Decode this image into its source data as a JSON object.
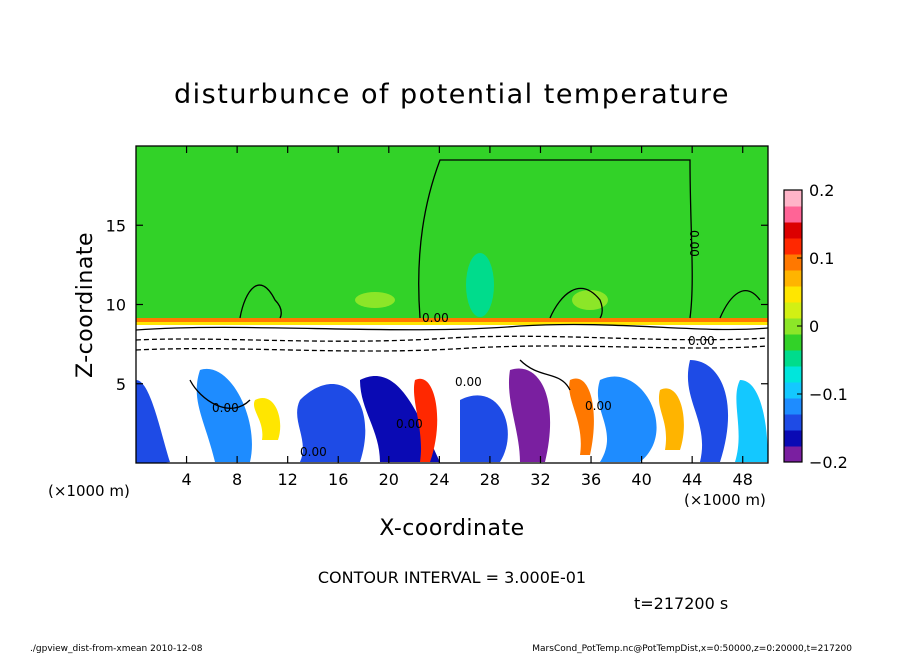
{
  "chart_data": {
    "type": "heatmap",
    "title": "disturbunce of potential temperature",
    "xlabel": "X-coordinate",
    "ylabel": "Z-coordinate",
    "x_unit_left": "(×1000 m)",
    "x_unit_right": "(×1000 m)",
    "xlim": [
      0,
      50
    ],
    "ylim": [
      0,
      20
    ],
    "x_ticks": [
      4,
      8,
      12,
      16,
      20,
      24,
      28,
      32,
      36,
      40,
      44,
      48
    ],
    "x_tick_labels": [
      "4",
      "8",
      "12",
      "16",
      "20",
      "24",
      "28",
      "32",
      "36",
      "40",
      "44",
      "48"
    ],
    "y_ticks": [
      5,
      10,
      15
    ],
    "y_tick_labels": [
      "5",
      "10",
      "15"
    ],
    "colorbar": {
      "range": [
        -0.2,
        0.2
      ],
      "ticks": [
        0.2,
        0.1,
        0,
        -0.1,
        -0.2
      ],
      "tick_labels": [
        "0.2",
        "0.1",
        "0",
        "−0.1",
        "−0.2"
      ],
      "colors": [
        "#7a1fa0",
        "#0a0ab4",
        "#1e4be6",
        "#1e8cff",
        "#14c8ff",
        "#00e6dc",
        "#00dc8c",
        "#32d228",
        "#8ce628",
        "#d2f014",
        "#ffe600",
        "#ffb400",
        "#ff7800",
        "#ff2800",
        "#dc0000",
        "#ff6496",
        "#ffb4c8"
      ]
    },
    "contour_interval_text": "CONTOUR INTERVAL = 3.000E-01",
    "contour_labels": [
      "0.00",
      "0.00",
      "0.00",
      "0.00",
      "0.00",
      "0.00",
      "0.00",
      "0.00"
    ],
    "time_text": "t=217200 s"
  },
  "footer": {
    "left": "./gpview_dist-from-xmean  2010-12-08",
    "right": "MarsCond_PotTemp.nc@PotTempDist,x=0:50000,z=0:20000,t=217200"
  }
}
